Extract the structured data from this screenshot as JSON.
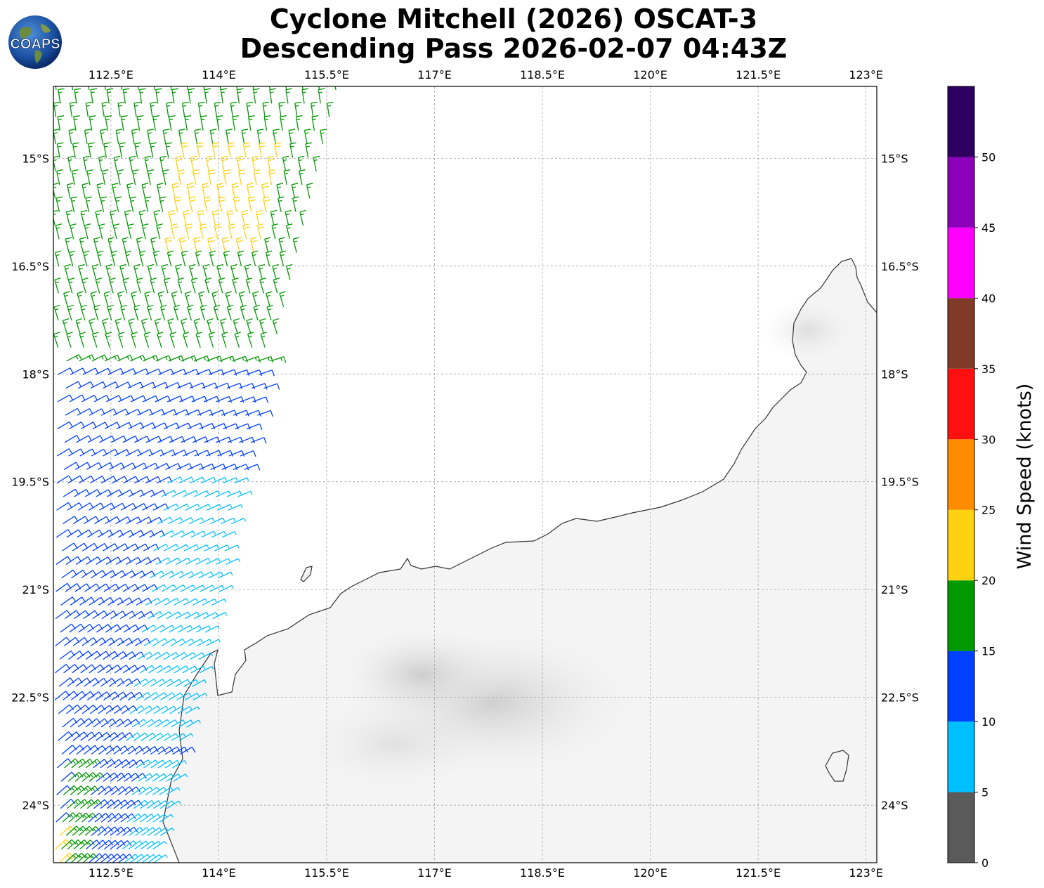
{
  "title": {
    "line1": "Cyclone Mitchell (2026) OSCAT-3",
    "line2": "Descending Pass 2026-02-07 04:43Z"
  },
  "logo": {
    "text": "COAPS",
    "icon": "globe-logo-icon"
  },
  "map": {
    "lon_ticks": [
      "112.5°E",
      "114°E",
      "115.5°E",
      "117°E",
      "118.5°E",
      "120°E",
      "121.5°E",
      "123°E"
    ],
    "lat_ticks": [
      "15°S",
      "16.5°S",
      "18°S",
      "19.5°S",
      "21°S",
      "22.5°S",
      "24°S"
    ],
    "lon_values": [
      112.5,
      114,
      115.5,
      117,
      118.5,
      120,
      121.5,
      123
    ],
    "lat_values": [
      -15,
      -16.5,
      -18,
      -19.5,
      -21,
      -22.5,
      -24
    ],
    "lon_range": [
      111.7,
      123.15
    ],
    "lat_range": [
      -14.0,
      -24.8
    ],
    "gridlines": true,
    "land_shading": "grayscale satellite"
  },
  "colorbar": {
    "label": "Wind Speed (knots)",
    "ticks": [
      "0",
      "5",
      "10",
      "15",
      "20",
      "25",
      "30",
      "35",
      "40",
      "45",
      "50"
    ],
    "bins": [
      {
        "min": 0,
        "max": 5,
        "color": "#5a5a5a"
      },
      {
        "min": 5,
        "max": 10,
        "color": "#00bfff"
      },
      {
        "min": 10,
        "max": 15,
        "color": "#0040ff"
      },
      {
        "min": 15,
        "max": 20,
        "color": "#009900"
      },
      {
        "min": 20,
        "max": 25,
        "color": "#ffd211"
      },
      {
        "min": 25,
        "max": 30,
        "color": "#ff8c00"
      },
      {
        "min": 30,
        "max": 35,
        "color": "#ff1010"
      },
      {
        "min": 35,
        "max": 40,
        "color": "#803a28"
      },
      {
        "min": 40,
        "max": 45,
        "color": "#ff00ff"
      },
      {
        "min": 45,
        "max": 50,
        "color": "#8b00b8"
      },
      {
        "min": 50,
        "max": 55,
        "color": "#2d0060"
      }
    ]
  },
  "wind_field": {
    "north_speed_knots": 17,
    "south_speed_knots": 11,
    "east_core_speed_knots": 7,
    "yellow_zone_speed_knots": 21
  }
}
